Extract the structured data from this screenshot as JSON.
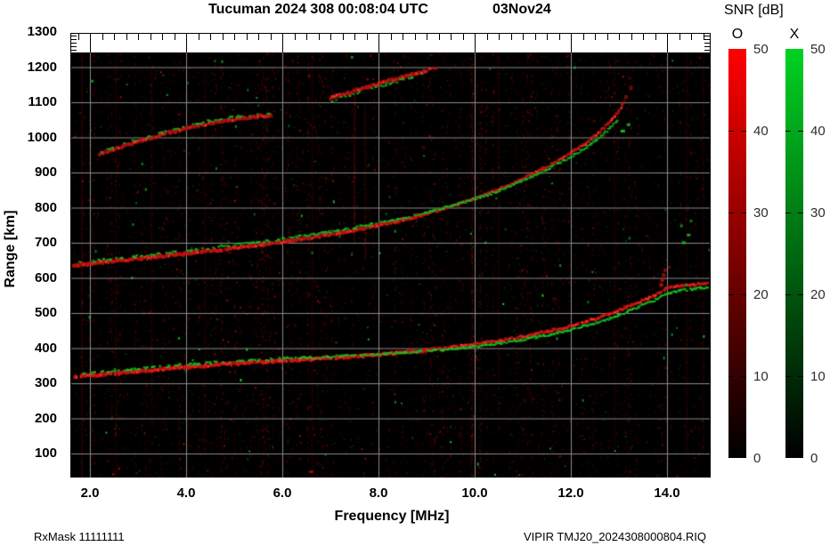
{
  "header": {
    "title": "Tucuman 2024 308 00:08:04 UTC",
    "date": "03Nov24"
  },
  "colorbar": {
    "title": "SNR [dB]",
    "o_label": "O",
    "x_label": "X",
    "ticks": [
      50,
      40,
      30,
      20,
      10,
      0
    ],
    "dash_ticks": [
      40,
      30,
      20,
      10
    ],
    "o_top_color": "#ff0000",
    "x_top_color": "#00d222",
    "bottom_color": "#000000"
  },
  "axes": {
    "x_label": "Frequency [MHz]",
    "y_label": "Range [km]",
    "x_ticks": [
      "2.0",
      "4.0",
      "6.0",
      "8.0",
      "10.0",
      "12.0",
      "14.0"
    ],
    "x_tick_values": [
      2,
      4,
      6,
      8,
      10,
      12,
      14
    ],
    "y_ticks": [
      1300,
      1200,
      1100,
      1000,
      900,
      800,
      700,
      600,
      500,
      400,
      300,
      200,
      100
    ],
    "x_minor_step": 0.25,
    "grid_color": "#8a8a8a"
  },
  "footer": {
    "left": "RxMask 11111111",
    "right": "VIPIR  TMJ20_2024308000804.RIQ"
  },
  "chart_data": {
    "type": "heatmap",
    "subtype": "ionogram",
    "title": "Tucuman 2024 308 00:08:04 UTC 03Nov24",
    "xlabel": "Frequency [MHz]",
    "ylabel": "Range [km]",
    "xlim": [
      1.6,
      14.9
    ],
    "ylim": [
      32,
      1300
    ],
    "grid": true,
    "legend": [
      {
        "name": "O",
        "color": "red",
        "snr_range_db": [
          0,
          50
        ]
      },
      {
        "name": "X",
        "color": "green",
        "snr_range_db": [
          0,
          50
        ]
      }
    ],
    "traces": [
      {
        "name": "F-1hop-O",
        "mode": "O",
        "color": "#d41414",
        "continuity": "solid",
        "points": [
          [
            1.67,
            318
          ],
          [
            2,
            322
          ],
          [
            2.5,
            328
          ],
          [
            3,
            334
          ],
          [
            3.5,
            340
          ],
          [
            4,
            346
          ],
          [
            4.5,
            351
          ],
          [
            5,
            356
          ],
          [
            5.5,
            360
          ],
          [
            6,
            364
          ],
          [
            6.5,
            368
          ],
          [
            7,
            372
          ],
          [
            7.5,
            376
          ],
          [
            8,
            381
          ],
          [
            8.5,
            387
          ],
          [
            9,
            394
          ],
          [
            9.5,
            402
          ],
          [
            10,
            411
          ],
          [
            10.5,
            421
          ],
          [
            11,
            433
          ],
          [
            11.5,
            447
          ],
          [
            12,
            463
          ],
          [
            12.5,
            483
          ],
          [
            13,
            507
          ],
          [
            13.3,
            524
          ],
          [
            13.6,
            541
          ],
          [
            13.8,
            554
          ],
          [
            13.95,
            568
          ],
          [
            14.2,
            576
          ],
          [
            14.5,
            580
          ],
          [
            14.85,
            584
          ]
        ]
      },
      {
        "name": "F-1hop-X",
        "mode": "X",
        "color": "#15c222",
        "continuity": "dashed",
        "points": [
          [
            1.8,
            326
          ],
          [
            2.5,
            336
          ],
          [
            3,
            342
          ],
          [
            3.5,
            348
          ],
          [
            4,
            353
          ],
          [
            4.5,
            358
          ],
          [
            5,
            362
          ],
          [
            5.5,
            366
          ],
          [
            6,
            370
          ],
          [
            6.5,
            373
          ],
          [
            7,
            376
          ],
          [
            7.5,
            379
          ],
          [
            8,
            382
          ],
          [
            8.5,
            386
          ],
          [
            9,
            391
          ],
          [
            9.5,
            397
          ],
          [
            10,
            404
          ],
          [
            10.5,
            413
          ],
          [
            11,
            424
          ],
          [
            11.5,
            437
          ],
          [
            12,
            452
          ],
          [
            12.5,
            471
          ],
          [
            13,
            494
          ],
          [
            13.3,
            511
          ],
          [
            13.6,
            528
          ],
          [
            13.8,
            540
          ],
          [
            13.95,
            553
          ],
          [
            14.2,
            562
          ],
          [
            14.5,
            568
          ],
          [
            14.85,
            573
          ]
        ]
      },
      {
        "name": "F-2hop-O",
        "mode": "O",
        "color": "#c01212",
        "continuity": "solid",
        "points": [
          [
            1.67,
            635
          ],
          [
            2,
            641
          ],
          [
            2.5,
            648
          ],
          [
            3,
            655
          ],
          [
            3.5,
            662
          ],
          [
            4,
            669
          ],
          [
            4.5,
            677
          ],
          [
            5,
            685
          ],
          [
            5.5,
            694
          ],
          [
            6,
            703
          ],
          [
            6.5,
            713
          ],
          [
            7,
            724
          ],
          [
            7.5,
            736
          ],
          [
            8,
            750
          ],
          [
            8.5,
            765
          ],
          [
            9,
            783
          ],
          [
            9.5,
            803
          ],
          [
            10,
            826
          ],
          [
            10.5,
            852
          ],
          [
            11,
            882
          ],
          [
            11.5,
            916
          ],
          [
            12,
            955
          ],
          [
            12.3,
            983
          ],
          [
            12.6,
            1015
          ],
          [
            12.85,
            1048
          ],
          [
            13,
            1075
          ],
          [
            13.1,
            1100
          ]
        ]
      },
      {
        "name": "F-2hop-X",
        "mode": "X",
        "color": "#14b520",
        "continuity": "dashed",
        "points": [
          [
            1.8,
            643
          ],
          [
            2.5,
            655
          ],
          [
            3,
            663
          ],
          [
            3.5,
            671
          ],
          [
            4,
            678
          ],
          [
            4.5,
            686
          ],
          [
            5,
            694
          ],
          [
            5.5,
            702
          ],
          [
            6,
            711
          ],
          [
            6.5,
            721
          ],
          [
            7,
            731
          ],
          [
            7.5,
            743
          ],
          [
            8,
            756
          ],
          [
            8.5,
            770
          ],
          [
            9,
            786
          ],
          [
            9.5,
            804
          ],
          [
            10,
            824
          ],
          [
            10.5,
            848
          ],
          [
            11,
            876
          ],
          [
            11.5,
            908
          ],
          [
            12,
            944
          ],
          [
            12.3,
            970
          ],
          [
            12.6,
            1000
          ],
          [
            12.85,
            1030
          ],
          [
            13,
            1055
          ]
        ]
      },
      {
        "name": "F-3hop-O-a",
        "mode": "O",
        "color": "#b41212",
        "continuity": "solid",
        "points": [
          [
            2.2,
            952
          ],
          [
            2.5,
            966
          ],
          [
            3,
            988
          ],
          [
            3.5,
            1008
          ],
          [
            4,
            1026
          ],
          [
            4.5,
            1041
          ],
          [
            5,
            1052
          ],
          [
            5.5,
            1060
          ],
          [
            5.8,
            1064
          ]
        ]
      },
      {
        "name": "F-3hop-X-a",
        "mode": "X",
        "color": "#14b520",
        "continuity": "sparse",
        "points": [
          [
            2.2,
            958
          ],
          [
            3,
            994
          ],
          [
            3.5,
            1014
          ],
          [
            4,
            1032
          ],
          [
            4.5,
            1047
          ],
          [
            5,
            1058
          ],
          [
            5.8,
            1070
          ]
        ]
      },
      {
        "name": "F-3hop-O-b",
        "mode": "O",
        "color": "#b41212",
        "continuity": "solid",
        "points": [
          [
            7,
            1112
          ],
          [
            7.5,
            1132
          ],
          [
            8,
            1152
          ],
          [
            8.5,
            1172
          ],
          [
            9,
            1190
          ],
          [
            9.2,
            1198
          ]
        ]
      },
      {
        "name": "F-3hop-X-b",
        "mode": "X",
        "color": "#14b520",
        "continuity": "sparse",
        "points": [
          [
            7,
            1104
          ],
          [
            7.5,
            1124
          ],
          [
            8,
            1144
          ],
          [
            8.5,
            1164
          ],
          [
            9,
            1182
          ]
        ]
      }
    ],
    "scatter": [
      {
        "f": 13.88,
        "km": 580,
        "color": "#c81010",
        "w": 4,
        "h": 4,
        "a": 0.9
      },
      {
        "f": 13.9,
        "km": 594,
        "color": "#c81010",
        "w": 4,
        "h": 4,
        "a": 0.85
      },
      {
        "f": 13.93,
        "km": 608,
        "color": "#b80e0e",
        "w": 4,
        "h": 4,
        "a": 0.8
      },
      {
        "f": 13.96,
        "km": 622,
        "color": "#a80d0d",
        "w": 4,
        "h": 4,
        "a": 0.7
      },
      {
        "f": 14.05,
        "km": 630,
        "color": "#980c0c",
        "w": 3,
        "h": 3,
        "a": 0.6
      },
      {
        "f": 13.15,
        "km": 1115,
        "color": "#b00d0d",
        "w": 4,
        "h": 4,
        "a": 0.7
      },
      {
        "f": 13.25,
        "km": 1142,
        "color": "#a00c0c",
        "w": 4,
        "h": 4,
        "a": 0.6
      },
      {
        "f": 13.08,
        "km": 1018,
        "color": "#16c524",
        "w": 5,
        "h": 3,
        "a": 0.95
      },
      {
        "f": 13.2,
        "km": 1036,
        "color": "#16c524",
        "w": 4,
        "h": 3,
        "a": 0.85
      },
      {
        "f": 14.35,
        "km": 700,
        "color": "#15c222",
        "w": 4,
        "h": 3,
        "a": 0.9
      },
      {
        "f": 14.45,
        "km": 722,
        "color": "#15c222",
        "w": 4,
        "h": 3,
        "a": 0.85
      },
      {
        "f": 14.3,
        "km": 748,
        "color": "#12a81e",
        "w": 3,
        "h": 3,
        "a": 0.8
      },
      {
        "f": 14.5,
        "km": 762,
        "color": "#12a81e",
        "w": 3,
        "h": 3,
        "a": 0.7
      },
      {
        "f": 14.4,
        "km": 580,
        "color": "#12a81e",
        "w": 3,
        "h": 3,
        "a": 0.8
      },
      {
        "f": 14.6,
        "km": 568,
        "color": "#12a81e",
        "w": 3,
        "h": 3,
        "a": 0.7
      },
      {
        "f": 6.6,
        "km": 48,
        "color": "#b00d0d",
        "w": 5,
        "h": 3,
        "a": 0.8
      },
      {
        "f": 2.05,
        "km": 1160,
        "color": "#15c222",
        "w": 3,
        "h": 3,
        "a": 0.7
      },
      {
        "f": 7.45,
        "km": 1228,
        "color": "#15c222",
        "w": 3,
        "h": 3,
        "a": 0.7
      }
    ],
    "rfi_streaks": [
      {
        "f": 1.83,
        "km0": 32,
        "km1": 1244,
        "a": 0.16
      },
      {
        "f": 2.54,
        "km0": 32,
        "km1": 1244,
        "a": 0.1
      },
      {
        "f": 3.28,
        "km0": 200,
        "km1": 1200,
        "a": 0.1
      },
      {
        "f": 4.39,
        "km0": 100,
        "km1": 1200,
        "a": 0.09
      },
      {
        "f": 6.62,
        "km0": 32,
        "km1": 1244,
        "a": 0.12
      },
      {
        "f": 7.5,
        "km0": 700,
        "km1": 1150,
        "a": 0.22
      },
      {
        "f": 7.72,
        "km0": 650,
        "km1": 1100,
        "a": 0.14
      },
      {
        "f": 9.95,
        "km0": 100,
        "km1": 1200,
        "a": 0.1
      },
      {
        "f": 10.5,
        "km0": 300,
        "km1": 1244,
        "a": 0.1
      },
      {
        "f": 12.9,
        "km0": 100,
        "km1": 1244,
        "a": 0.11
      },
      {
        "f": 14.4,
        "km0": 100,
        "km1": 1244,
        "a": 0.12
      },
      {
        "f": 14.75,
        "km0": 100,
        "km1": 1244,
        "a": 0.1
      }
    ]
  }
}
